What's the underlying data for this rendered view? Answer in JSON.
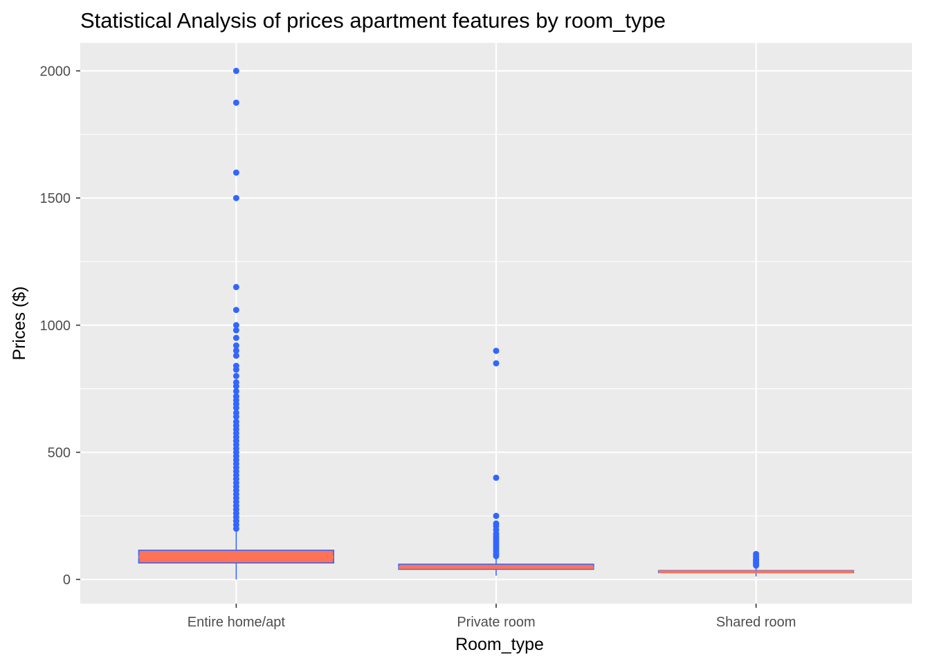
{
  "chart_data": {
    "type": "box",
    "title": "Statistical Analysis of prices apartment features by room_type",
    "xlabel": "Room_type",
    "ylabel": "Prices ($)",
    "categories": [
      "Entire home/apt",
      "Private room",
      "Shared room"
    ],
    "y_ticks": [
      0,
      500,
      1000,
      1500,
      2000
    ],
    "y_tick_labels": [
      "0",
      "500",
      "1000",
      "1500",
      "2000"
    ],
    "ylim": [
      -95,
      2110
    ],
    "grid": true,
    "legend": "none",
    "colors": {
      "panel": "#EBEBEB",
      "grid": "#FFFFFF",
      "box_outline": "#3366FF",
      "median": "#FF7256",
      "points": "#3366FF"
    },
    "boxes": [
      {
        "category": "Entire home/apt",
        "whisker_low": 0,
        "q1": 65,
        "median": 88,
        "q3": 115,
        "whisker_high": 190,
        "outliers": [
          200,
          215,
          230,
          245,
          260,
          275,
          290,
          305,
          320,
          335,
          350,
          365,
          380,
          395,
          410,
          425,
          440,
          455,
          470,
          485,
          500,
          515,
          530,
          545,
          560,
          575,
          590,
          605,
          620,
          640,
          655,
          675,
          690,
          705,
          720,
          740,
          760,
          775,
          800,
          825,
          840,
          880,
          900,
          920,
          950,
          980,
          1000,
          1060,
          1150,
          1500,
          1600,
          1875,
          2000
        ]
      },
      {
        "category": "Private room",
        "whisker_low": 15,
        "q1": 40,
        "median": 47,
        "q3": 60,
        "whisker_high": 88,
        "outliers": [
          92,
          100,
          110,
          120,
          130,
          140,
          150,
          160,
          170,
          180,
          195,
          210,
          220,
          250,
          400,
          850,
          899
        ]
      },
      {
        "category": "Shared room",
        "whisker_low": 12,
        "q1": 27,
        "median": 30,
        "q3": 35,
        "whisker_high": 48,
        "outliers": [
          55,
          60,
          65,
          70,
          75,
          80,
          90,
          100
        ]
      }
    ]
  }
}
